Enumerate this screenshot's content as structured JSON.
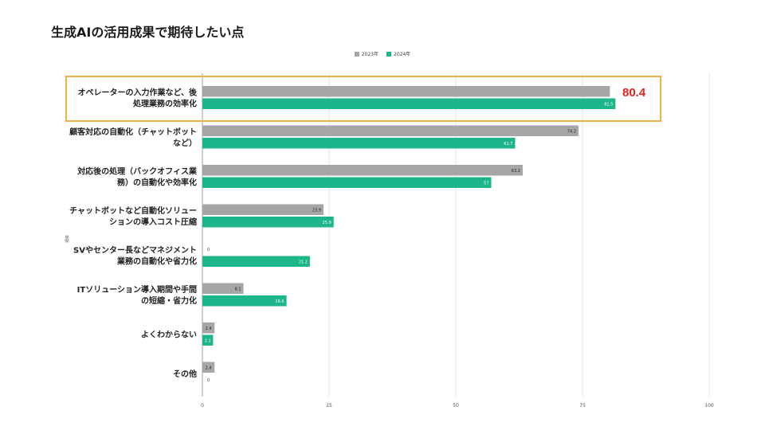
{
  "title": "生成AIの活用成果で期待したい点",
  "colors": {
    "series_2023": "#a6a6a6",
    "series_2024": "#1db68a",
    "highlight_border": "#f0b04a",
    "callout": "#e52222"
  },
  "callout": {
    "value": "80.4"
  },
  "chart_data": {
    "type": "bar",
    "orientation": "horizontal",
    "title": "生成AIの活用成果で期待したい点",
    "ylabel": "項目",
    "xlabel": "",
    "xlim": [
      0,
      100
    ],
    "xticks": [
      0,
      25,
      50,
      75,
      100
    ],
    "grid": true,
    "legend": "top-center",
    "categories": [
      "オペレーターの入力作業など、後\n処理業務の効率化",
      "顧客対応の自動化（チャットボット\nなど）",
      "対応後の処理（バックオフィス業\n務）の自動化や効率化",
      "チャットボットなど自動化ソリュー\nションの導入コスト圧縮",
      "SVやセンター長などマネジメント\n業務の自動化や省力化",
      "ITソリューション導入期間や手間\nの短縮・省力化",
      "よくわからない",
      "その他"
    ],
    "series": [
      {
        "name": "2023年",
        "values": [
          80.4,
          74.2,
          63.2,
          23.9,
          0,
          8.1,
          2.4,
          2.4
        ],
        "labels": [
          "",
          "74.2",
          "63.2",
          "23.9",
          "0",
          "8.1",
          "2.4",
          "2.4"
        ]
      },
      {
        "name": "2024年",
        "values": [
          81.5,
          61.7,
          57,
          25.9,
          21.2,
          16.6,
          2.1,
          0
        ],
        "labels": [
          "81.5",
          "61.7",
          "57",
          "25.9",
          "21.2",
          "16.6",
          "2.1",
          "0"
        ]
      }
    ]
  }
}
